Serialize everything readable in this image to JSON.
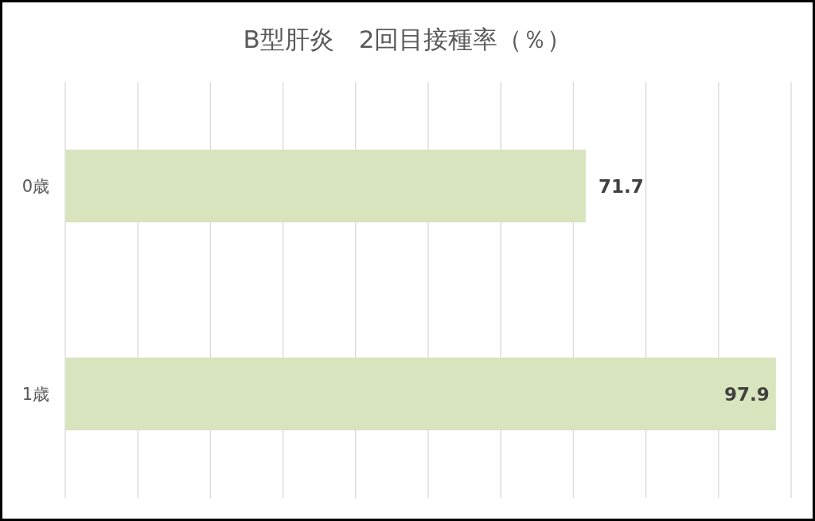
{
  "chart_data": {
    "type": "bar",
    "orientation": "horizontal",
    "title": "B型肝炎　2回目接種率（％）",
    "categories": [
      "0歳",
      "1歳"
    ],
    "values": [
      71.7,
      97.9
    ],
    "color": "#d7e4bd",
    "xlim": [
      0,
      100
    ],
    "xticks": [
      {
        "value": 0,
        "label": null
      },
      {
        "value": 10,
        "label": null
      },
      {
        "value": 20,
        "label": null
      },
      {
        "value": 30,
        "label": null
      },
      {
        "value": 40,
        "label": null
      },
      {
        "value": 50,
        "label": null
      },
      {
        "value": 60,
        "label": null
      },
      {
        "value": 70,
        "label": null
      },
      {
        "value": 80,
        "label": null
      },
      {
        "value": 90,
        "label": null
      },
      {
        "value": 100,
        "label": null
      }
    ],
    "tick_labels": "y",
    "grid": "x",
    "data_labels": true
  }
}
